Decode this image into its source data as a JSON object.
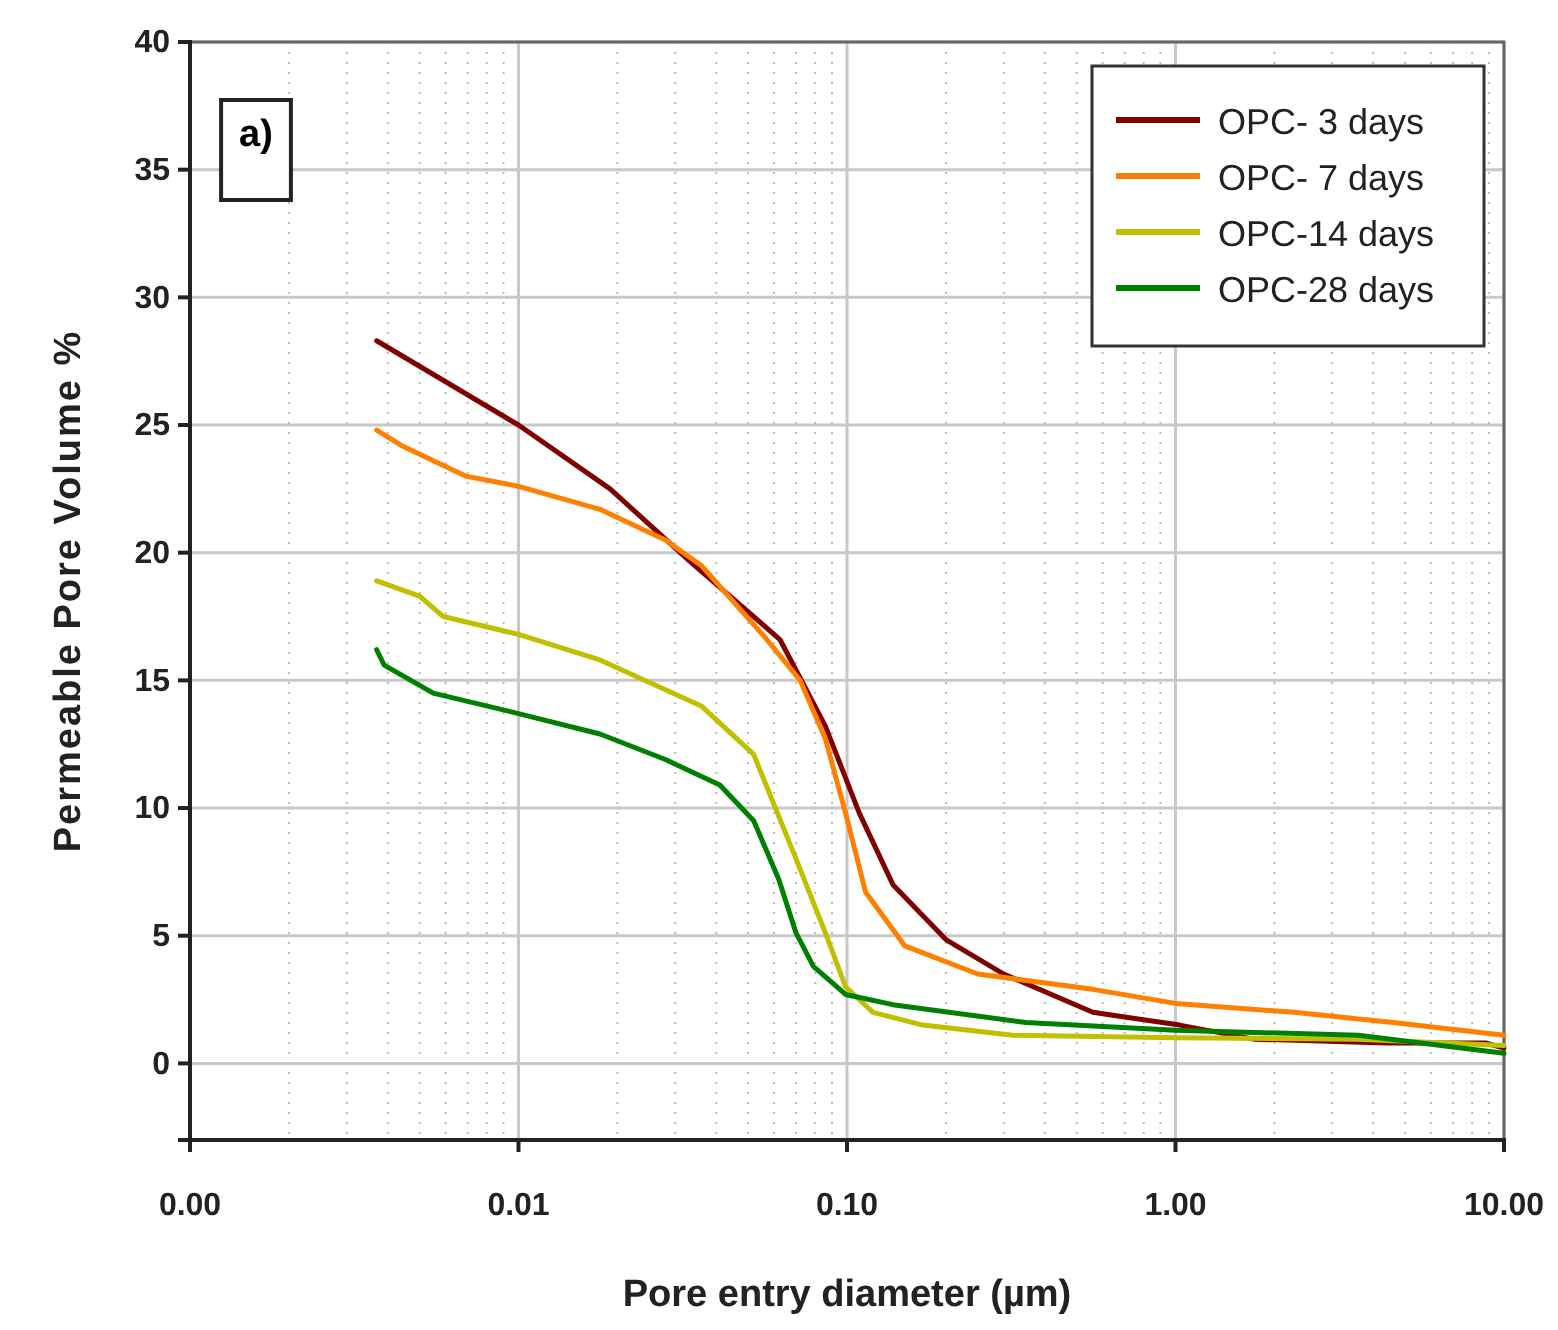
{
  "chart_data": {
    "type": "line",
    "xlabel": "Pore entry diameter (µm)",
    "ylabel": "Permeable Pore Volume %",
    "annotations": [
      "a)"
    ],
    "log": "x",
    "xlim": [
      0.001,
      10
    ],
    "ylim": [
      -3,
      40
    ],
    "xticks": [
      {
        "value": 0.001,
        "label": "0.00"
      },
      {
        "value": 0.01,
        "label": "0.01"
      },
      {
        "value": 0.1,
        "label": "0.10"
      },
      {
        "value": 1,
        "label": "1.00"
      },
      {
        "value": 10,
        "label": "10.00"
      }
    ],
    "yticks": [
      0,
      5,
      10,
      15,
      20,
      25,
      30,
      35,
      40
    ],
    "grid": true,
    "legend": "top right",
    "line_style": "solid",
    "marker": "none",
    "series": [
      {
        "name": "OPC- 3 days",
        "color": "#800000",
        "x": [
          0.0037,
          0.01,
          0.019,
          0.033,
          0.0625,
          0.086,
          0.109,
          0.138,
          0.2,
          0.3,
          0.56,
          1.03,
          1.73,
          4.4,
          8.8,
          10
        ],
        "values": [
          28.3,
          25.0,
          22.5,
          19.7,
          16.6,
          13.2,
          9.8,
          7.0,
          4.85,
          3.5,
          2.0,
          1.5,
          0.95,
          0.8,
          0.8,
          0.6
        ]
      },
      {
        "name": "OPC- 7 days",
        "color": "#ff8000",
        "x": [
          0.0037,
          0.0044,
          0.0069,
          0.01,
          0.0177,
          0.028,
          0.036,
          0.057,
          0.072,
          0.086,
          0.099,
          0.114,
          0.15,
          0.25,
          0.56,
          1.0,
          2.3,
          4.6,
          10
        ],
        "values": [
          24.8,
          24.2,
          23.0,
          22.6,
          21.7,
          20.5,
          19.5,
          16.6,
          15.0,
          12.7,
          9.8,
          6.7,
          4.6,
          3.5,
          2.9,
          2.35,
          2.0,
          1.6,
          1.1
        ]
      },
      {
        "name": "OPC-14 days",
        "color": "#c0c000",
        "x": [
          0.0037,
          0.005,
          0.0059,
          0.01,
          0.0177,
          0.036,
          0.052,
          0.07,
          0.086,
          0.099,
          0.12,
          0.17,
          0.32,
          1.0,
          3.6,
          10
        ],
        "values": [
          18.9,
          18.3,
          17.5,
          16.8,
          15.8,
          14.0,
          12.1,
          8.0,
          5.1,
          3.0,
          2.0,
          1.5,
          1.1,
          1.0,
          0.95,
          0.7
        ]
      },
      {
        "name": "OPC-28 days",
        "color": "#008000",
        "x": [
          0.0037,
          0.0039,
          0.0055,
          0.01,
          0.0177,
          0.028,
          0.041,
          0.052,
          0.062,
          0.07,
          0.079,
          0.099,
          0.138,
          0.35,
          1.0,
          3.6,
          10
        ],
        "values": [
          16.2,
          15.6,
          14.5,
          13.7,
          12.9,
          11.9,
          10.9,
          9.5,
          7.2,
          5.1,
          3.8,
          2.7,
          2.3,
          1.6,
          1.3,
          1.1,
          0.4
        ]
      }
    ]
  }
}
